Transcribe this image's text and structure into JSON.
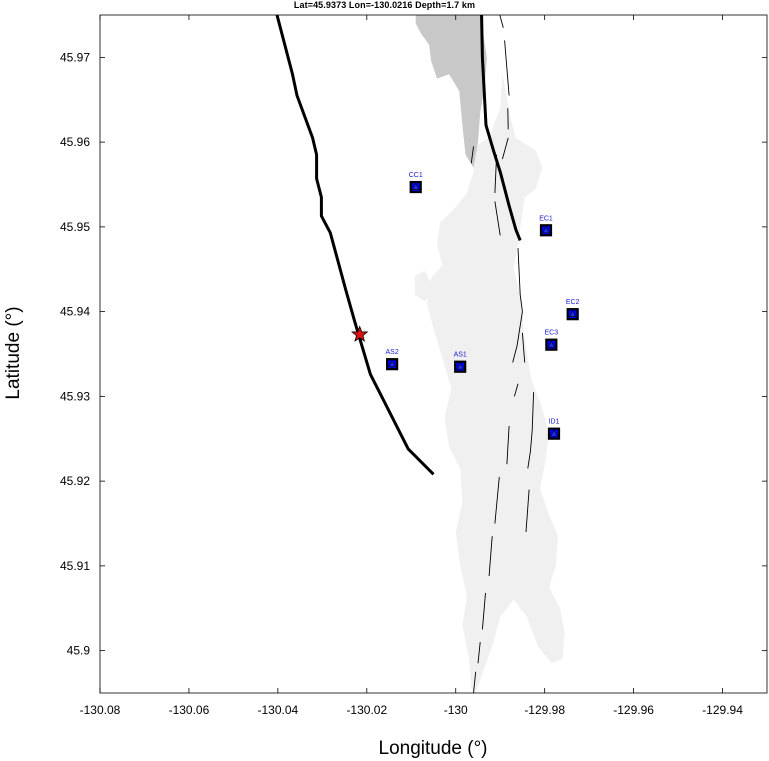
{
  "title": "Lat=45.9373  Lon=-130.0216  Depth=1.7 km",
  "colors": {
    "caldera_fill": "#c8c8c8",
    "lava_fill": "#f0f0f0",
    "station_fill": "#0000ff",
    "station_edge": "#000000",
    "station_label": "#1a1ad0",
    "epicenter": "#dd1111"
  },
  "chart_data": {
    "type": "scatter",
    "title": "Lat=45.9373  Lon=-130.0216  Depth=1.7 km",
    "xlabel": "Longitude (°)",
    "ylabel": "Latitude (°)",
    "xlim": [
      -130.08,
      -129.93
    ],
    "ylim": [
      45.895,
      45.975
    ],
    "xticks": [
      "-130.08",
      "-130.06",
      "-130.04",
      "-130.02",
      "-130",
      "-129.98",
      "-129.96",
      "-129.94"
    ],
    "xtick_values": [
      -130.08,
      -130.06,
      -130.04,
      -130.02,
      -130.0,
      -129.98,
      -129.96,
      -129.94
    ],
    "yticks": [
      "45.9",
      "45.91",
      "45.92",
      "45.93",
      "45.94",
      "45.95",
      "45.96",
      "45.97"
    ],
    "ytick_values": [
      45.9,
      45.91,
      45.92,
      45.93,
      45.94,
      45.95,
      45.96,
      45.97
    ],
    "grid": false,
    "epicenter": {
      "lon": -130.0216,
      "lat": 45.9373,
      "symbol": "star"
    },
    "stations": [
      {
        "name": "CC1",
        "lon": -130.009,
        "lat": 45.9547
      },
      {
        "name": "EC1",
        "lon": -129.9797,
        "lat": 45.9496
      },
      {
        "name": "EC2",
        "lon": -129.9737,
        "lat": 45.9397
      },
      {
        "name": "EC3",
        "lon": -129.9785,
        "lat": 45.9361
      },
      {
        "name": "AS2",
        "lon": -130.0143,
        "lat": 45.9338
      },
      {
        "name": "AS1",
        "lon": -129.999,
        "lat": 45.9335
      },
      {
        "name": "ID1",
        "lon": -129.9779,
        "lat": 45.9256
      }
    ],
    "thick_lines": [
      {
        "name": "west-wall",
        "points": [
          [
            -130.0402,
            45.975
          ],
          [
            -130.0367,
            45.968
          ],
          [
            -130.0357,
            45.9655
          ],
          [
            -130.0322,
            45.9605
          ],
          [
            -130.0313,
            45.9585
          ],
          [
            -130.0313,
            45.9557
          ],
          [
            -130.0302,
            45.9535
          ],
          [
            -130.0302,
            45.9513
          ],
          [
            -130.0282,
            45.9493
          ],
          [
            -130.0247,
            45.9425
          ],
          [
            -130.0227,
            45.9388
          ],
          [
            -130.0192,
            45.9326
          ],
          [
            -130.0107,
            45.9238
          ],
          [
            -130.005,
            45.9208
          ]
        ]
      },
      {
        "name": "east-wall",
        "points": [
          [
            -129.9942,
            45.9755
          ],
          [
            -129.994,
            45.97
          ],
          [
            -129.9932,
            45.962
          ],
          [
            -129.9915,
            45.959
          ],
          [
            -129.99,
            45.9565
          ],
          [
            -129.988,
            45.9525
          ],
          [
            -129.9865,
            45.9497
          ],
          [
            -129.9855,
            45.9484
          ]
        ]
      }
    ],
    "thin_lines": [
      [
        [
          -129.986,
          45.9475
        ],
        [
          -129.9855,
          45.942
        ],
        [
          -129.985,
          45.94
        ],
        [
          -129.9862,
          45.936
        ],
        [
          -129.9872,
          45.934
        ]
      ],
      [
        [
          -129.99,
          45.949
        ],
        [
          -129.9912,
          45.953
        ]
      ],
      [
        [
          -129.9912,
          45.954
        ],
        [
          -129.9908,
          45.9585
        ]
      ],
      [
        [
          -129.9895,
          45.958
        ],
        [
          -129.9882,
          45.9605
        ]
      ],
      [
        [
          -129.9882,
          45.9615
        ],
        [
          -129.9883,
          45.964
        ]
      ],
      [
        [
          -129.988,
          45.9655
        ],
        [
          -129.989,
          45.972
        ]
      ],
      [
        [
          -129.9893,
          45.9735
        ],
        [
          -129.9902,
          45.9752
        ]
      ],
      [
        [
          -129.996,
          45.9595
        ],
        [
          -129.9965,
          45.9575
        ]
      ],
      [
        [
          -129.985,
          45.9375
        ],
        [
          -129.9845,
          45.934
        ]
      ],
      [
        [
          -129.986,
          45.9315
        ],
        [
          -129.9868,
          45.93
        ]
      ],
      [
        [
          -129.9825,
          45.9305
        ],
        [
          -129.9828,
          45.926
        ],
        [
          -129.9832,
          45.9235
        ],
        [
          -129.9838,
          45.9215
        ]
      ],
      [
        [
          -129.9835,
          45.919
        ],
        [
          -129.9842,
          45.914
        ]
      ],
      [
        [
          -129.988,
          45.9265
        ],
        [
          -129.9885,
          45.922
        ]
      ],
      [
        [
          -129.9902,
          45.9205
        ],
        [
          -129.9912,
          45.915
        ]
      ],
      [
        [
          -129.9918,
          45.9135
        ],
        [
          -129.9925,
          45.9088
        ]
      ],
      [
        [
          -129.9933,
          45.9068
        ],
        [
          -129.994,
          45.9025
        ]
      ],
      [
        [
          -129.9945,
          45.901
        ],
        [
          -129.995,
          45.8985
        ]
      ],
      [
        [
          -129.9955,
          45.8975
        ],
        [
          -129.996,
          45.895
        ]
      ]
    ],
    "dark_polygon": [
      [
        -130.009,
        45.975
      ],
      [
        -129.9945,
        45.975
      ],
      [
        -129.993,
        45.97
      ],
      [
        -129.9935,
        45.9665
      ],
      [
        -129.9945,
        45.9635
      ],
      [
        -129.995,
        45.96
      ],
      [
        -129.996,
        45.957
      ],
      [
        -129.9978,
        45.9585
      ],
      [
        -129.9985,
        45.962
      ],
      [
        -129.9992,
        45.966
      ],
      [
        -130.0015,
        45.968
      ],
      [
        -130.0042,
        45.9675
      ],
      [
        -130.0055,
        45.9695
      ],
      [
        -130.006,
        45.9715
      ],
      [
        -130.0078,
        45.9728
      ],
      [
        -130.009,
        45.974
      ]
    ],
    "light_polygons": [
      [
        [
          -129.9955,
          45.9595
        ],
        [
          -129.9925,
          45.9605
        ],
        [
          -129.99,
          45.964
        ],
        [
          -129.9895,
          45.968
        ],
        [
          -129.9875,
          45.9625
        ],
        [
          -129.9865,
          45.9605
        ],
        [
          -129.982,
          45.959
        ],
        [
          -129.9805,
          45.957
        ],
        [
          -129.982,
          45.9545
        ],
        [
          -129.9845,
          45.9535
        ],
        [
          -129.986,
          45.948
        ],
        [
          -129.987,
          45.945
        ],
        [
          -129.985,
          45.941
        ],
        [
          -129.9848,
          45.938
        ],
        [
          -129.984,
          45.935
        ],
        [
          -129.983,
          45.932
        ],
        [
          -129.9808,
          45.929
        ],
        [
          -129.979,
          45.9255
        ],
        [
          -129.98,
          45.922
        ],
        [
          -129.981,
          45.919
        ],
        [
          -129.979,
          45.916
        ],
        [
          -129.977,
          45.9135
        ],
        [
          -129.9775,
          45.91
        ],
        [
          -129.979,
          45.9075
        ],
        [
          -129.9765,
          45.905
        ],
        [
          -129.9755,
          45.902
        ],
        [
          -129.976,
          45.899
        ],
        [
          -129.9785,
          45.8985
        ],
        [
          -129.9815,
          45.9005
        ],
        [
          -129.984,
          45.904
        ],
        [
          -129.987,
          45.906
        ],
        [
          -129.99,
          45.904
        ],
        [
          -129.9915,
          45.901
        ],
        [
          -129.9935,
          45.898
        ],
        [
          -129.9955,
          45.895
        ],
        [
          -129.9965,
          45.8955
        ],
        [
          -129.997,
          45.899
        ],
        [
          -129.9985,
          45.903
        ],
        [
          -129.9975,
          45.9065
        ],
        [
          -129.999,
          45.91
        ],
        [
          -130.0,
          45.914
        ],
        [
          -129.9985,
          45.9175
        ],
        [
          -129.999,
          45.9215
        ],
        [
          -130.0015,
          45.924
        ],
        [
          -130.0025,
          45.9275
        ],
        [
          -130.001,
          45.931
        ],
        [
          -130.003,
          45.9345
        ],
        [
          -130.005,
          45.938
        ],
        [
          -130.0065,
          45.941
        ],
        [
          -130.0055,
          45.944
        ],
        [
          -130.003,
          45.9455
        ],
        [
          -130.0042,
          45.948
        ],
        [
          -130.0035,
          45.9505
        ],
        [
          -130.0005,
          45.952
        ],
        [
          -129.9975,
          45.954
        ],
        [
          -129.996,
          45.9565
        ]
      ],
      [
        [
          -130.0092,
          45.9442
        ],
        [
          -130.007,
          45.9448
        ],
        [
          -130.005,
          45.943
        ],
        [
          -130.0068,
          45.9412
        ],
        [
          -130.0092,
          45.942
        ]
      ]
    ]
  }
}
